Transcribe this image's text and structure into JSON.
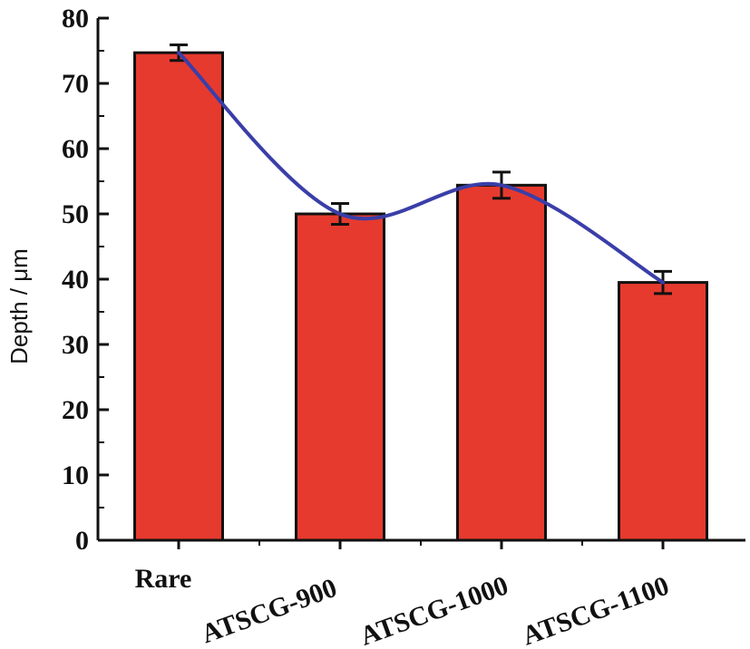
{
  "chart_data": {
    "type": "bar",
    "title": "",
    "xlabel": "",
    "ylabel": "Depth / μm",
    "categories": [
      "Rare",
      "ATSCG-900",
      "ATSCG-1000",
      "ATSCG-1100"
    ],
    "values": [
      74.7,
      50.0,
      54.4,
      39.5
    ],
    "errors": [
      1.2,
      1.6,
      2.0,
      1.7
    ],
    "trend_line": true,
    "ylim": [
      0,
      80
    ],
    "yticks": [
      0,
      10,
      20,
      30,
      40,
      50,
      60,
      70,
      80
    ],
    "grid": false,
    "legend": "none",
    "colors": {
      "bar_fill": "#e63a2e",
      "bar_edge": "#111111",
      "trend_line": "#3a3ea8",
      "axis": "#111111"
    }
  }
}
